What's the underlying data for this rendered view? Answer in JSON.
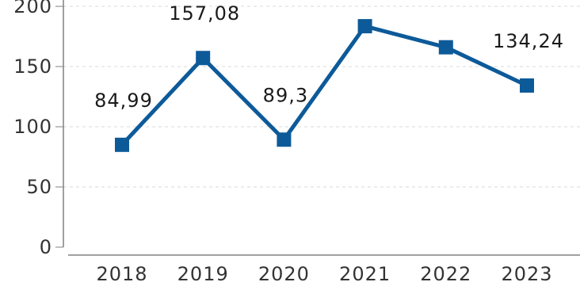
{
  "chart_data": {
    "type": "line",
    "categories": [
      "2018",
      "2019",
      "2020",
      "2021",
      "2022",
      "2023"
    ],
    "series": [
      {
        "values": [
          84.99,
          157.08,
          89.3,
          183.5,
          166.0,
          134.24
        ],
        "data_labels": [
          "84,99",
          "157,08",
          "89,3",
          "",
          "",
          "134,24"
        ]
      }
    ],
    "y_ticks": [
      {
        "value": 0,
        "label": "0"
      },
      {
        "value": 50,
        "label": "50"
      },
      {
        "value": 100,
        "label": "100"
      },
      {
        "value": 150,
        "label": "150"
      },
      {
        "value": 200,
        "label": "200"
      }
    ],
    "ylim": [
      0,
      200
    ],
    "grid": true,
    "legend": "none",
    "colors": {
      "series": "#0d5a99",
      "grid": "#d9d9d9",
      "axis": "#808080"
    }
  }
}
